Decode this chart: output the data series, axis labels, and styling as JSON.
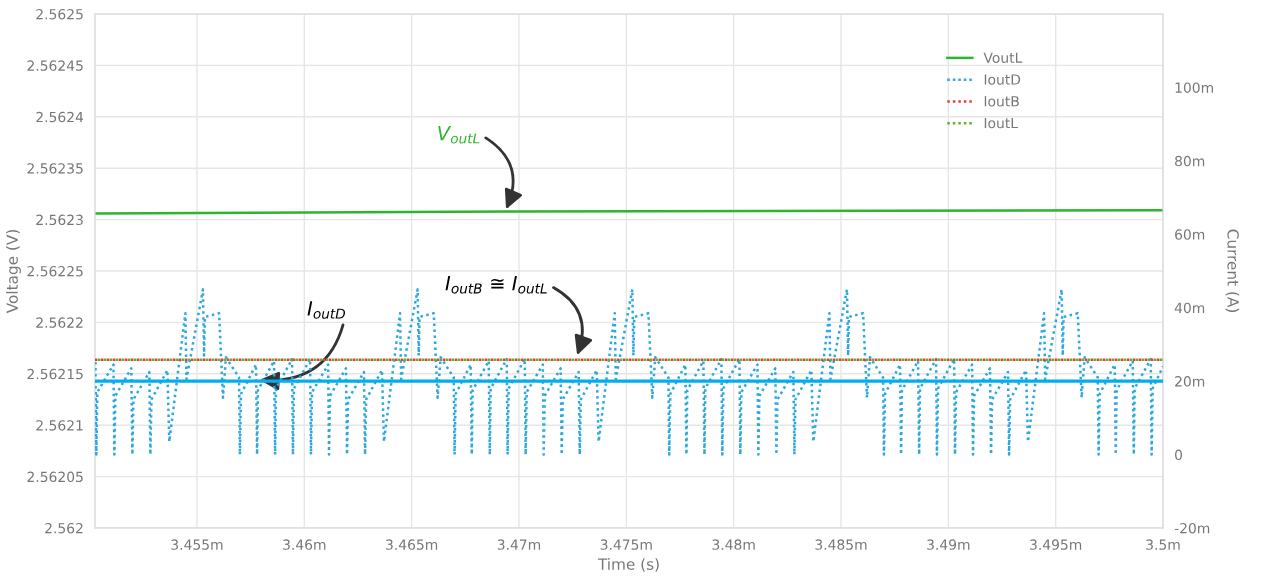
{
  "chart_data": {
    "type": "line",
    "xlabel": "Time (s)",
    "ylabel": "Voltage (V)",
    "y2label": "Current (A)",
    "xlim": [
      3.45025,
      3.5
    ],
    "xticks": [
      {
        "value": 3.455,
        "label": "3.455m"
      },
      {
        "value": 3.46,
        "label": "3.46m"
      },
      {
        "value": 3.465,
        "label": "3.465m"
      },
      {
        "value": 3.47,
        "label": "3.47m"
      },
      {
        "value": 3.475,
        "label": "3.475m"
      },
      {
        "value": 3.48,
        "label": "3.48m"
      },
      {
        "value": 3.485,
        "label": "3.485m"
      },
      {
        "value": 3.49,
        "label": "3.49m"
      },
      {
        "value": 3.495,
        "label": "3.495m"
      },
      {
        "value": 3.5,
        "label": "3.5m"
      }
    ],
    "ylim": [
      2.562,
      2.5625
    ],
    "yticks": [
      2.562,
      2.56205,
      2.5621,
      2.56215,
      2.5622,
      2.56225,
      2.5623,
      2.56235,
      2.5624,
      2.56245,
      2.5625
    ],
    "y2lim": [
      -20,
      120
    ],
    "y2ticks": [
      {
        "value": -20,
        "label": "-20m"
      },
      0,
      {
        "value": 20,
        "label": "20m"
      },
      {
        "value": 40,
        "label": "40m"
      },
      {
        "value": 60,
        "label": "60m"
      },
      {
        "value": 80,
        "label": "80m"
      },
      {
        "value": 100,
        "label": "100m"
      }
    ],
    "grid": true,
    "legend": "top right",
    "series": [
      {
        "name": "VoutL",
        "color": "#2db52d",
        "line_style": "solid",
        "x": [
          3.45025,
          3.47,
          3.5
        ],
        "values": [
          2.562306,
          2.562308,
          2.562309
        ]
      },
      {
        "name": "IoutD",
        "color": "#2aa8df",
        "line_style": "dotted",
        "axis": "y2",
        "x": [
          3.45027,
          3.45031,
          3.45036,
          3.45111,
          3.45115,
          3.4512,
          3.45194,
          3.45199,
          3.45204,
          3.45278,
          3.45283,
          3.45288,
          3.45362,
          3.45371,
          3.45446,
          3.45451,
          3.45528,
          3.45533,
          3.45537,
          3.45603,
          3.45621,
          3.45635,
          3.45696,
          3.457,
          3.45705,
          3.45775,
          3.4578,
          3.45784,
          3.45859,
          3.45864,
          3.45868,
          3.45943,
          3.45947,
          3.45952,
          3.46027,
          3.46031,
          3.46036,
          3.46111,
          3.46115,
          3.4612,
          3.46194,
          3.46199,
          3.46204,
          3.46278,
          3.46283,
          3.46288,
          3.46362,
          3.46371,
          3.46446,
          3.46451,
          3.46528,
          3.46533,
          3.46537,
          3.46603,
          3.46621,
          3.46635,
          3.46696,
          3.467,
          3.46705,
          3.46775,
          3.4678,
          3.46784,
          3.46859,
          3.46864,
          3.46868,
          3.46943,
          3.46947,
          3.46952,
          3.47027,
          3.47031,
          3.47036,
          3.47111,
          3.47115,
          3.4712,
          3.47194,
          3.47199,
          3.47204,
          3.47278,
          3.47283,
          3.47288,
          3.47362,
          3.47371,
          3.47446,
          3.47451,
          3.47528,
          3.47533,
          3.47537,
          3.47603,
          3.47621,
          3.47635,
          3.47696,
          3.477,
          3.47705,
          3.47775,
          3.4778,
          3.47784,
          3.47859,
          3.47864,
          3.47868,
          3.47943,
          3.47947,
          3.47952,
          3.48027,
          3.48031,
          3.48036,
          3.48111,
          3.48115,
          3.4812,
          3.48194,
          3.48199,
          3.48204,
          3.48278,
          3.48283,
          3.48288,
          3.48362,
          3.48371,
          3.48446,
          3.48451,
          3.48528,
          3.48533,
          3.48537,
          3.48603,
          3.48621,
          3.48635,
          3.48696,
          3.487,
          3.48705,
          3.48775,
          3.4878,
          3.48784,
          3.48859,
          3.48864,
          3.48868,
          3.48943,
          3.48947,
          3.48952,
          3.49027,
          3.49031,
          3.49036,
          3.49111,
          3.49115,
          3.4912,
          3.49194,
          3.49199,
          3.49204,
          3.49278,
          3.49283,
          3.49288,
          3.49362,
          3.49371,
          3.49446,
          3.49451,
          3.49528,
          3.49533,
          3.49537,
          3.49603,
          3.49621,
          3.49635,
          3.49696,
          3.497,
          3.49705,
          3.49775,
          3.4978,
          3.49784,
          3.49859,
          3.49864,
          3.49868,
          3.49943,
          3.49947,
          3.49952,
          3.5
        ],
        "values": [
          26,
          0,
          17,
          24.5,
          0,
          16,
          23.5,
          0,
          15,
          22.5,
          0,
          15,
          23,
          3.5,
          38.5,
          20.5,
          45,
          27,
          37.5,
          38.5,
          15.5,
          26.5,
          21,
          0,
          16.5,
          24.5,
          0,
          17.5,
          25.5,
          0,
          18,
          26,
          0,
          18,
          26,
          0,
          17,
          24.5,
          0,
          16,
          23.5,
          0,
          15,
          22.5,
          0,
          15,
          23,
          3.5,
          38.5,
          20.5,
          45,
          27,
          37.5,
          38.5,
          15.5,
          26.5,
          21,
          0,
          16.5,
          24.5,
          0,
          17.5,
          25.5,
          0,
          18,
          26,
          0,
          18,
          26,
          0,
          17,
          24.5,
          0,
          16,
          23.5,
          0,
          15,
          22.5,
          0,
          15,
          23,
          3.5,
          38.5,
          20.5,
          45,
          27,
          37.5,
          38.5,
          15.5,
          26.5,
          21,
          0,
          16.5,
          24.5,
          0,
          17.5,
          25.5,
          0,
          18,
          26,
          0,
          18,
          26,
          0,
          17,
          24.5,
          0,
          16,
          23.5,
          0,
          15,
          22.5,
          0,
          15,
          23,
          3.5,
          38.5,
          20.5,
          45,
          27,
          37.5,
          38.5,
          15.5,
          26.5,
          21,
          0,
          16.5,
          24.5,
          0,
          17.5,
          25.5,
          0,
          18,
          26,
          0,
          18,
          26,
          0,
          17,
          24.5,
          0,
          16,
          23.5,
          0,
          15,
          22.5,
          0,
          15,
          23,
          3.5,
          38.5,
          20.5,
          45,
          27,
          37.5,
          38.5,
          15.5,
          26.5,
          21,
          0,
          16.5,
          24.5,
          0,
          17.5,
          25.5,
          0,
          18,
          26,
          0,
          18,
          24
        ]
      },
      {
        "name": "IoutB",
        "color": "#e0403a",
        "line_style": "dotted",
        "axis": "y2",
        "x": [
          3.45025,
          3.5
        ],
        "values": [
          25.8,
          25.8
        ]
      },
      {
        "name": "IoutL",
        "color": "#6aac2c",
        "line_style": "dotted",
        "axis": "y2",
        "x": [
          3.45025,
          3.5
        ],
        "values": [
          25.8,
          25.8
        ]
      }
    ],
    "ref_lines": [
      {
        "axis": "y2",
        "value": 20,
        "color": "#00aeef",
        "line_style": "solid"
      }
    ],
    "annotations": [
      {
        "text": "V$_{outL}$",
        "x": 3.4694,
        "y": 2.56231
      },
      {
        "text": "I$_{outD}$",
        "x": 3.45792,
        "y": 2.562144
      },
      {
        "text": "I$_{outB}$ ≅ I$_{outL}$",
        "x": 3.47271,
        "y": 2.562168
      }
    ]
  }
}
